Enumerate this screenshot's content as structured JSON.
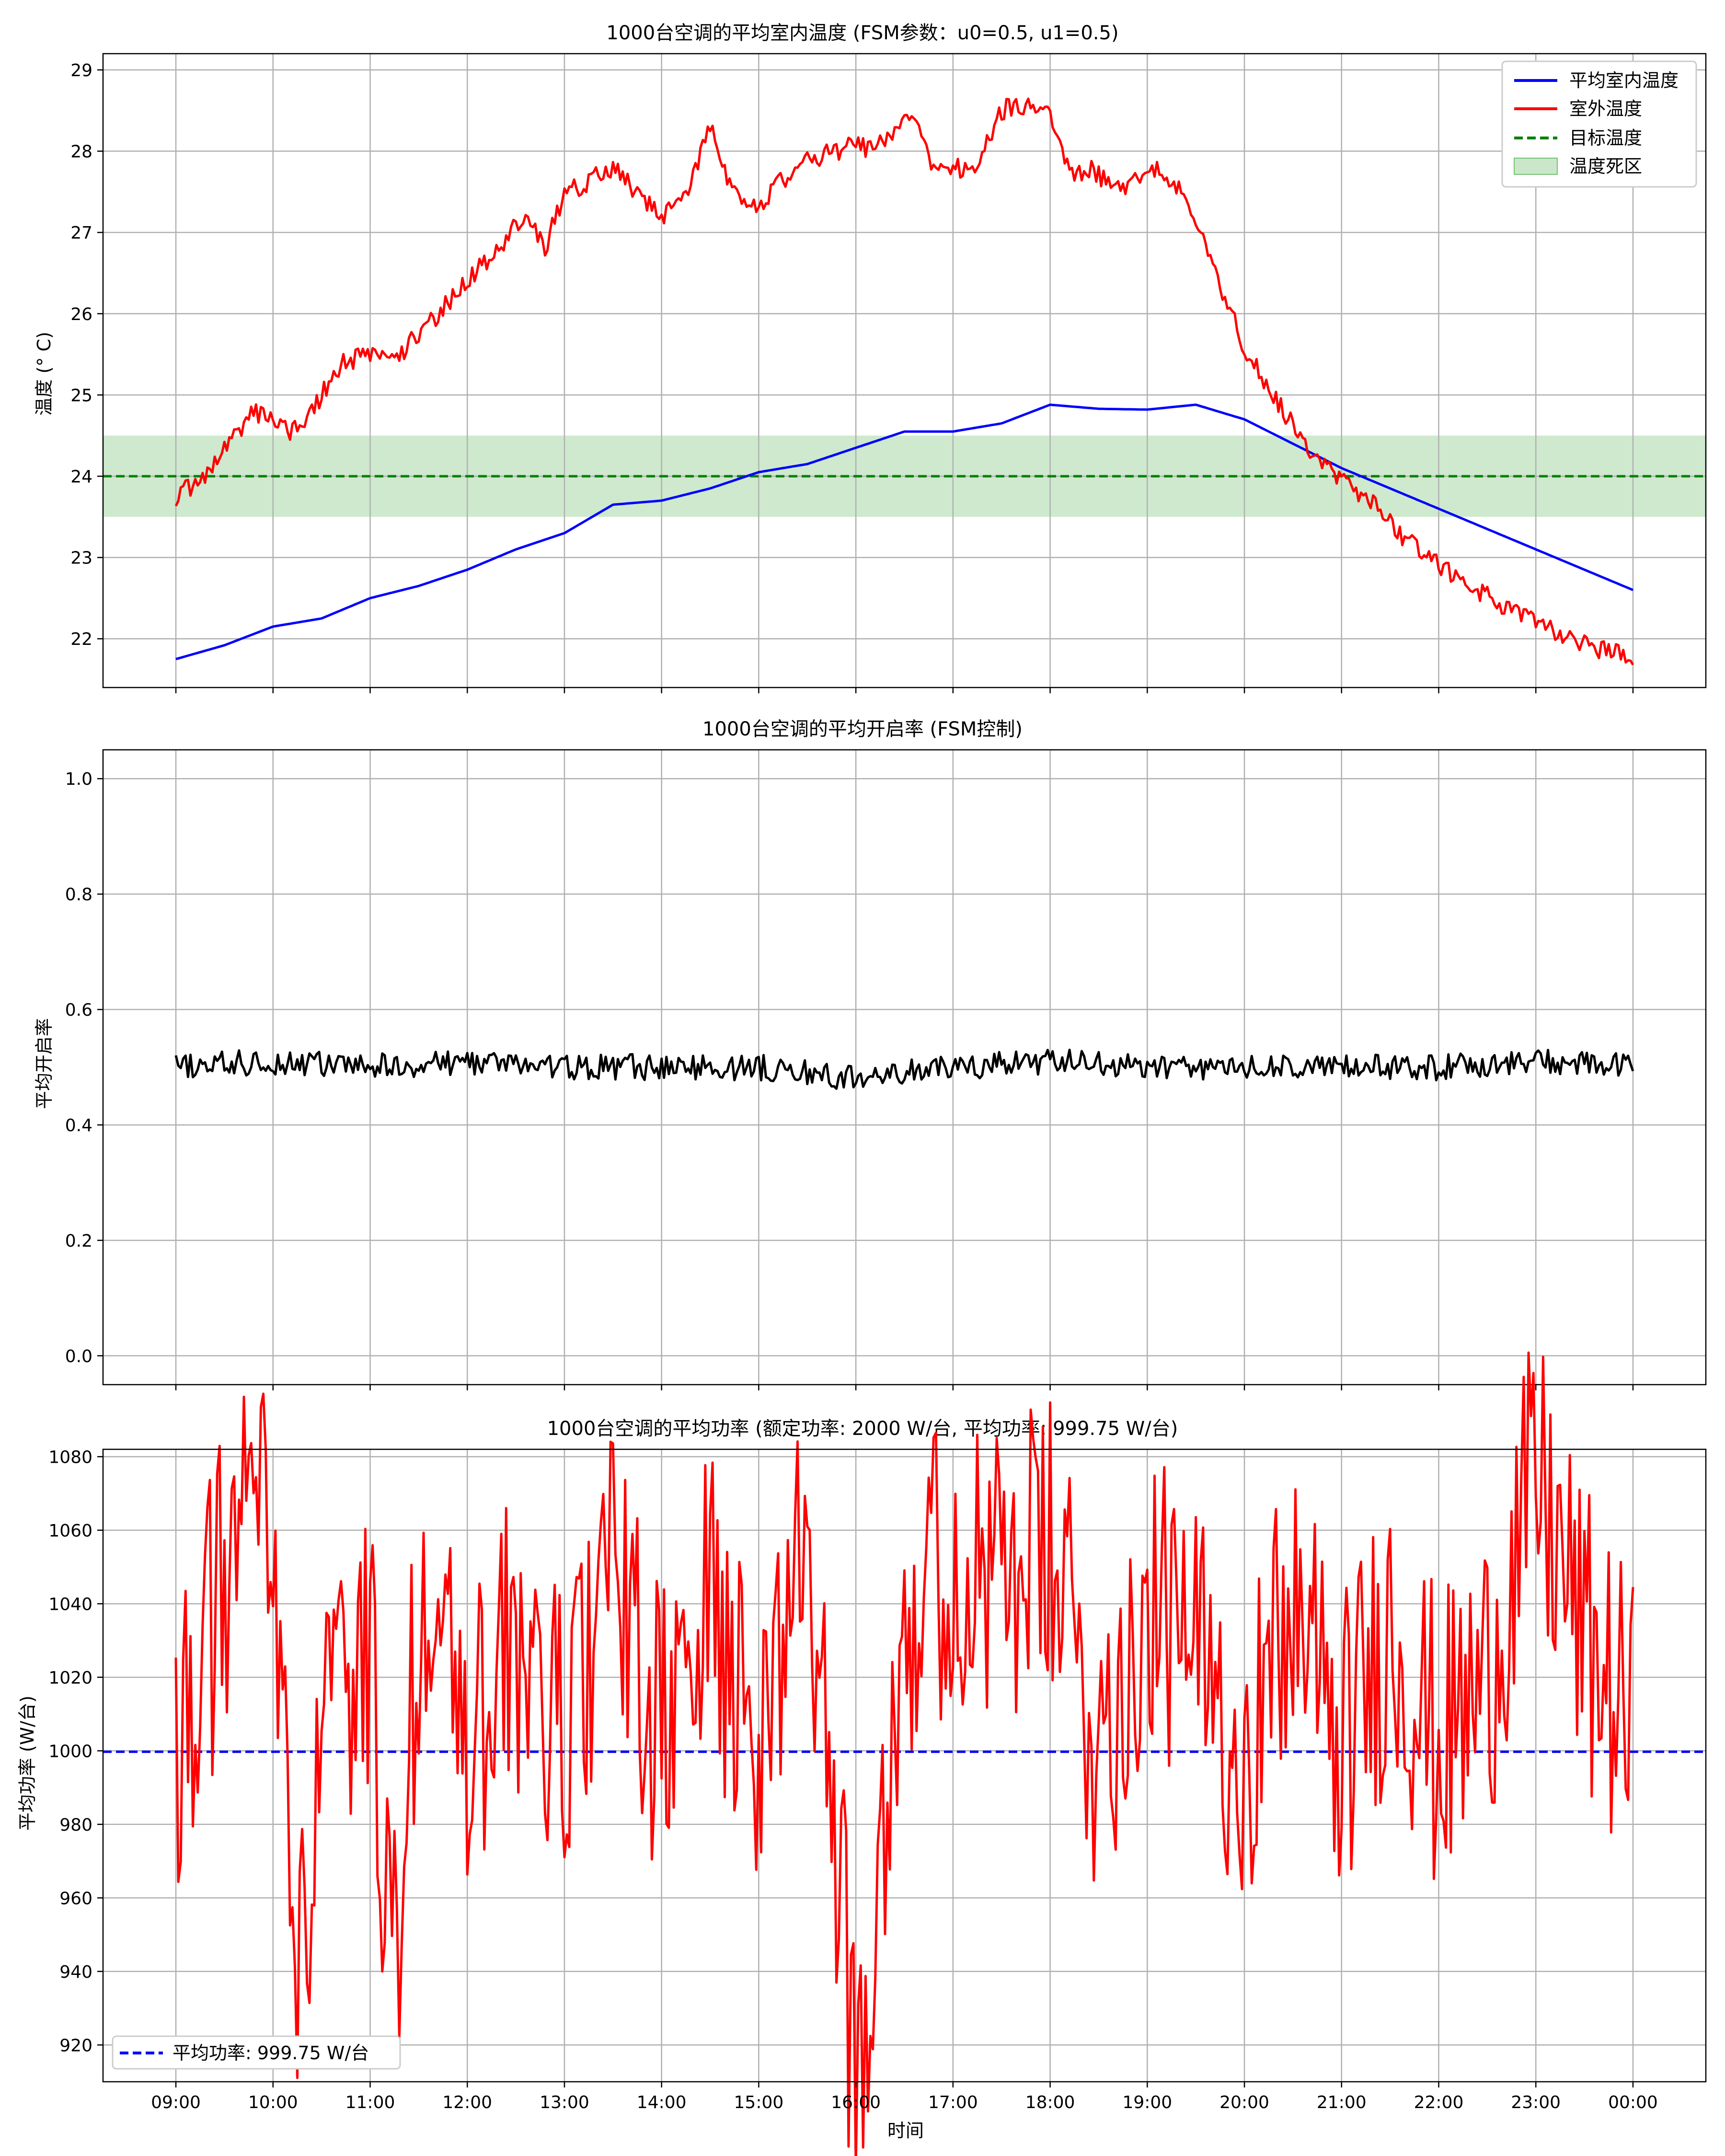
{
  "chart_data": [
    {
      "type": "line",
      "title": "1000台空调的平均室内温度 (FSM参数：u0=0.5, u1=0.5)",
      "xlabel": "",
      "ylabel": "温度 (° C)",
      "x_ticks": [
        "09:00",
        "10:00",
        "11:00",
        "12:00",
        "13:00",
        "14:00",
        "15:00",
        "16:00",
        "17:00",
        "18:00",
        "19:00",
        "20:00",
        "21:00",
        "22:00",
        "23:00",
        "00:00"
      ],
      "xlim": [
        -0.75,
        15.75
      ],
      "ylim": [
        21.4,
        29.2
      ],
      "yticks": [
        22,
        23,
        24,
        25,
        26,
        27,
        28,
        29
      ],
      "grid": true,
      "legend_position": "top-right",
      "band": {
        "name": "温度死区",
        "y0": 23.5,
        "y1": 24.5,
        "color": "#2ca02c"
      },
      "hlines": [
        {
          "name": "目标温度",
          "y": 24,
          "color": "#008000",
          "style": "dashed"
        }
      ],
      "series": [
        {
          "name": "平均室内温度",
          "color": "#0000ff",
          "x": [
            0,
            0.5,
            1,
            1.5,
            2,
            2.5,
            3,
            3.5,
            4,
            4.5,
            5,
            5.5,
            6,
            6.5,
            7,
            7.5,
            8,
            8.5,
            9,
            9.5,
            10,
            10.5,
            11,
            11.5,
            12,
            12.5,
            13,
            13.5,
            14,
            14.5,
            15
          ],
          "y": [
            21.75,
            21.92,
            22.15,
            22.25,
            22.5,
            22.65,
            22.85,
            23.1,
            23.3,
            23.65,
            23.7,
            23.85,
            24.05,
            24.15,
            24.35,
            24.55,
            24.55,
            24.65,
            24.88,
            24.83,
            24.82,
            24.88,
            24.7,
            24.4,
            24.1,
            23.85,
            23.6,
            23.35,
            23.1,
            22.85,
            22.6
          ]
        },
        {
          "name": "室外温度",
          "color": "#ff0000",
          "x": [
            0,
            0.3,
            0.6,
            0.8,
            1,
            1.2,
            1.4,
            1.7,
            2,
            2.3,
            2.7,
            3,
            3.3,
            3.6,
            3.8,
            4,
            4.2,
            4.5,
            4.8,
            5,
            5.3,
            5.5,
            5.7,
            6,
            6.2,
            6.5,
            6.8,
            7,
            7.2,
            7.4,
            7.6,
            7.8,
            8,
            8.2,
            8.5,
            8.8,
            9,
            9.2,
            9.4,
            9.6,
            9.8,
            10,
            10.2,
            10.4,
            10.6,
            10.8,
            11,
            11.2,
            11.4,
            11.7,
            12,
            12.3,
            12.6,
            13,
            13.4,
            13.8,
            14.2,
            14.6,
            15
          ],
          "y": [
            23.75,
            24.0,
            24.5,
            24.8,
            24.7,
            24.55,
            24.8,
            25.4,
            25.5,
            25.5,
            26.0,
            26.4,
            26.8,
            27.2,
            26.8,
            27.5,
            27.6,
            27.8,
            27.4,
            27.2,
            27.6,
            28.3,
            27.6,
            27.3,
            27.6,
            27.9,
            28.0,
            28.1,
            28.0,
            28.3,
            28.4,
            27.8,
            27.8,
            27.75,
            28.5,
            28.6,
            28.4,
            27.7,
            27.8,
            27.6,
            27.5,
            27.85,
            27.65,
            27.5,
            26.8,
            26.2,
            25.6,
            25.2,
            24.8,
            24.3,
            23.95,
            23.7,
            23.3,
            22.9,
            22.6,
            22.3,
            22.1,
            21.9,
            21.75
          ]
        }
      ]
    },
    {
      "type": "line",
      "title": "1000台空调的平均开启率 (FSM控制)",
      "xlabel": "",
      "ylabel": "平均开启率",
      "x_ticks": [
        "09:00",
        "10:00",
        "11:00",
        "12:00",
        "13:00",
        "14:00",
        "15:00",
        "16:00",
        "17:00",
        "18:00",
        "19:00",
        "20:00",
        "21:00",
        "22:00",
        "23:00",
        "00:00"
      ],
      "xlim": [
        -0.75,
        15.75
      ],
      "ylim": [
        -0.05,
        1.05
      ],
      "yticks": [
        0.0,
        0.2,
        0.4,
        0.6,
        0.8,
        1.0
      ],
      "grid": true,
      "series": [
        {
          "name": "",
          "color": "#000000",
          "x": [
            0,
            1,
            2,
            3,
            4,
            5,
            6,
            7,
            8,
            9,
            10,
            11,
            12,
            13,
            14,
            15
          ],
          "y": [
            0.5,
            0.51,
            0.5,
            0.51,
            0.5,
            0.5,
            0.5,
            0.48,
            0.5,
            0.51,
            0.5,
            0.5,
            0.5,
            0.5,
            0.51,
            0.5
          ]
        }
      ]
    },
    {
      "type": "line",
      "title": "1000台空调的平均功率 (额定功率: 2000 W/台, 平均功率: 999.75 W/台)",
      "xlabel": "时间",
      "ylabel": "平均功率 (W/台)",
      "x_ticks": [
        "09:00",
        "10:00",
        "11:00",
        "12:00",
        "13:00",
        "14:00",
        "15:00",
        "16:00",
        "17:00",
        "18:00",
        "19:00",
        "20:00",
        "21:00",
        "22:00",
        "23:00",
        "00:00"
      ],
      "xlim": [
        -0.75,
        15.75
      ],
      "ylim": [
        910,
        1082
      ],
      "yticks": [
        920,
        940,
        960,
        980,
        1000,
        1020,
        1040,
        1060,
        1080
      ],
      "grid": true,
      "legend_position": "bottom-left",
      "hlines": [
        {
          "name": "平均功率: 999.75 W/台",
          "y": 999.75,
          "color": "#0000ff",
          "style": "dashed"
        }
      ],
      "series": [
        {
          "name": "",
          "color": "#ff0000",
          "x": [
            0,
            0.5,
            1,
            1.25,
            1.5,
            2,
            2.25,
            2.5,
            3,
            3.5,
            4,
            4.5,
            5,
            5.5,
            6,
            6.5,
            7,
            7.5,
            8,
            8.5,
            9,
            9.5,
            10,
            10.5,
            11,
            11.5,
            12,
            12.5,
            13,
            13.5,
            14,
            14.5,
            15
          ],
          "y": [
            1000,
            1046,
            1072,
            928,
            1000,
            1026,
            938,
            1040,
            1000,
            1030,
            1000,
            1050,
            1000,
            1040,
            1000,
            1060,
            912,
            1040,
            1050,
            1045,
            1054,
            1000,
            1040,
            1025,
            1000,
            1040,
            1000,
            1035,
            1000,
            1020,
            1074,
            1030,
            1004
          ]
        }
      ]
    }
  ],
  "legend": {
    "items": [
      {
        "label": "平均室内温度",
        "color": "#0000ff",
        "style": "solid"
      },
      {
        "label": "室外温度",
        "color": "#ff0000",
        "style": "solid"
      },
      {
        "label": "目标温度",
        "color": "#008000",
        "style": "dashed"
      },
      {
        "label": "温度死区",
        "color": "#2ca02c",
        "style": "patch"
      }
    ]
  },
  "legend_bottom": {
    "items": [
      {
        "label": "平均功率: 999.75 W/台",
        "color": "#0000ff",
        "style": "dashed"
      }
    ]
  }
}
